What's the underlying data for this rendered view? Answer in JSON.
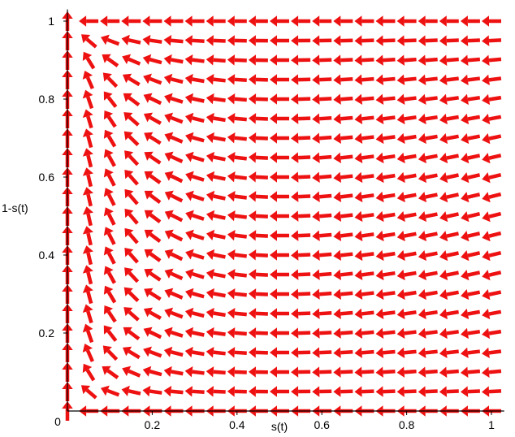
{
  "chart_data": {
    "type": "vector-field",
    "title": "",
    "xlabel": "s(t)",
    "ylabel": "1-s(t)",
    "xlim": [
      0,
      1.03
    ],
    "ylim": [
      0,
      1.03
    ],
    "xticks": [
      {
        "value": 0.2,
        "label": "0.2"
      },
      {
        "value": 0.4,
        "label": "0.4"
      },
      {
        "value": 0.6,
        "label": "0.6"
      },
      {
        "value": 0.8,
        "label": "0.8"
      },
      {
        "value": 1.0,
        "label": "1"
      }
    ],
    "yticks": [
      {
        "value": 0.2,
        "label": "0.2"
      },
      {
        "value": 0.4,
        "label": "0.4"
      },
      {
        "value": 0.6,
        "label": "0.6"
      },
      {
        "value": 0.8,
        "label": "0.8"
      },
      {
        "value": 1.0,
        "label": "1"
      }
    ],
    "origin_label": "0",
    "grid": false,
    "field": {
      "x_start": 0.0,
      "x_step": 0.05,
      "x_count": 21,
      "y_start": 0.0,
      "y_step": 0.05,
      "y_count": 21,
      "direction_x": "-x",
      "direction_y": "y*(1-y)*(1-2*x)",
      "normalized": true
    },
    "arrow_color": "#ee1111"
  }
}
